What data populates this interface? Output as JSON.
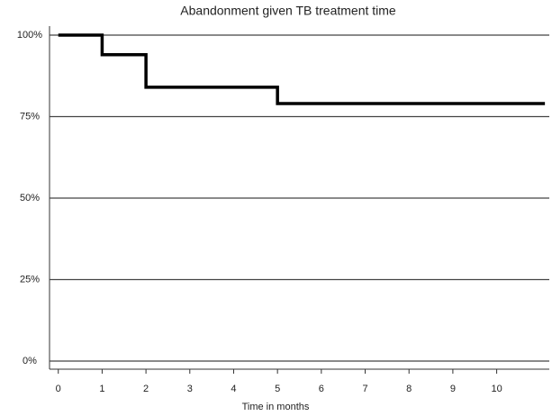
{
  "chart_data": {
    "type": "step",
    "title": "Abandonment given TB treatment time",
    "x_label": "Time in months",
    "x": [
      0,
      1,
      2,
      5,
      11.1
    ],
    "values": [
      100,
      94,
      84,
      79,
      79
    ],
    "color": "#000000",
    "xlim": [
      -0.2,
      11.2
    ],
    "xticks": [
      0,
      1,
      2,
      3,
      4,
      5,
      6,
      7,
      8,
      9,
      10
    ],
    "ylim": [
      0,
      100
    ],
    "yticks": [
      {
        "value": 0,
        "label": "0%"
      },
      {
        "value": 25,
        "label": "25%"
      },
      {
        "value": 50,
        "label": "50%"
      },
      {
        "value": 75,
        "label": "75%"
      },
      {
        "value": 100,
        "label": "100%"
      }
    ],
    "grid": true
  }
}
